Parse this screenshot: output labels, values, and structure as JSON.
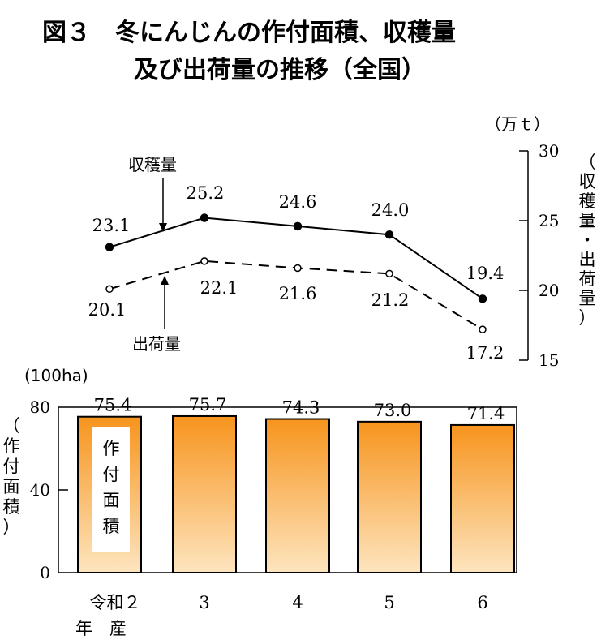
{
  "title": {
    "line1": "図３　冬にんじんの作付面積、収穫量",
    "line2": "及び出荷量の推移（全国）"
  },
  "chart_data": [
    {
      "type": "line",
      "unit_label": "（万ｔ）",
      "ylabel": "（収穫量・出荷量）",
      "ylabel_chars": [
        "（",
        "収",
        "穫",
        "量",
        "・",
        "出",
        "荷",
        "量",
        "）"
      ],
      "ylim": [
        15,
        30
      ],
      "yticks": [
        30,
        25,
        20,
        15
      ],
      "categories": [
        "令和２年産",
        "3",
        "4",
        "5",
        "6"
      ],
      "series": [
        {
          "name": "収穫量",
          "values": [
            23.1,
            25.2,
            24.6,
            24.0,
            19.4
          ],
          "labels": [
            "23.1",
            "25.2",
            "24.6",
            "24.0",
            "19.4"
          ],
          "style": "solid-filled"
        },
        {
          "name": "出荷量",
          "values": [
            20.1,
            22.1,
            21.6,
            21.2,
            17.2
          ],
          "labels": [
            "20.1",
            "22.1",
            "21.6",
            "21.2",
            "17.2"
          ],
          "style": "dashed-open"
        }
      ],
      "annotations": {
        "harvest": "収穫量",
        "shipment": "出荷量"
      }
    },
    {
      "type": "bar",
      "unit_label": "(100ha)",
      "ylabel": "（作付面積）",
      "ylabel_chars": [
        "（",
        "作",
        "付",
        "面",
        "積",
        "）"
      ],
      "ylim": [
        0,
        80
      ],
      "yticks": [
        80,
        40,
        0
      ],
      "categories": [
        "令和２",
        "3",
        "4",
        "5",
        "6"
      ],
      "category_sub": "年　産",
      "values": [
        75.4,
        75.7,
        74.3,
        73.0,
        71.4
      ],
      "labels": [
        "75.4",
        "75.7",
        "74.3",
        "73.0",
        "71.4"
      ],
      "series_name": "作付面積",
      "series_name_chars": [
        "作",
        "付",
        "面",
        "積"
      ],
      "colors": {
        "top": "#f7941d",
        "bottom": "#fde5bf",
        "stroke": "#000000"
      }
    }
  ]
}
